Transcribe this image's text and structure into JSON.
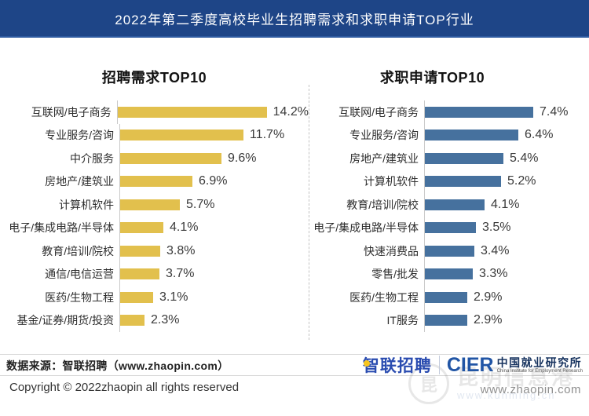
{
  "banner": {
    "title": "2022年第二季度高校毕业生招聘需求和求职申请TOP行业"
  },
  "chart_data": [
    {
      "type": "bar",
      "orientation": "horizontal",
      "title": "招聘需求TOP10",
      "categories": [
        "互联网/电子商务",
        "专业服务/咨询",
        "中介服务",
        "房地产/建筑业",
        "计算机软件",
        "电子/集成电路/半导体",
        "教育/培训/院校",
        "通信/电信运营",
        "医药/生物工程",
        "基金/证券/期货/投资"
      ],
      "values": [
        14.2,
        11.7,
        9.6,
        6.9,
        5.7,
        4.1,
        3.8,
        3.7,
        3.1,
        2.3
      ],
      "value_labels": [
        "14.2%",
        "11.7%",
        "9.6%",
        "6.9%",
        "5.7%",
        "4.1%",
        "3.8%",
        "3.7%",
        "3.1%",
        "2.3%"
      ],
      "bar_color": "#E2C04D",
      "xlabel": "",
      "ylabel": "",
      "xlim": [
        0,
        18
      ],
      "grid": false,
      "legend": false
    },
    {
      "type": "bar",
      "orientation": "horizontal",
      "title": "求职申请TOP10",
      "categories": [
        "互联网/电子商务",
        "专业服务/咨询",
        "房地产/建筑业",
        "计算机软件",
        "教育/培训/院校",
        "电子/集成电路/半导体",
        "快速消费品",
        "零售/批发",
        "医药/生物工程",
        "IT服务"
      ],
      "values": [
        7.4,
        6.4,
        5.4,
        5.2,
        4.1,
        3.5,
        3.4,
        3.3,
        2.9,
        2.9
      ],
      "value_labels": [
        "7.4%",
        "6.4%",
        "5.4%",
        "5.2%",
        "4.1%",
        "3.5%",
        "3.4%",
        "3.3%",
        "2.9%",
        "2.9%"
      ],
      "bar_color": "#46719E",
      "xlabel": "",
      "ylabel": "",
      "xlim": [
        0,
        11
      ],
      "grid": false,
      "legend": false
    }
  ],
  "footer": {
    "source": "数据来源：智联招聘（www.zhaopin.com）",
    "copyright": "Copyright © 2022zhaopin all rights reserved"
  },
  "branding": {
    "zhaopin_logo": "智联招聘",
    "cier_acronym": "CIER",
    "cier_cn": "中国就业研究所",
    "cier_en": "China Institute for Employment Research",
    "website": "www.zhaopin.com"
  },
  "watermark": {
    "glyph": "昆",
    "text": "昆明信息港",
    "url": "www.kunming.cn"
  },
  "colors": {
    "banner_bg": "#1E4587",
    "bar_yellow": "#E2C04D",
    "bar_blue": "#46719E",
    "zhaopin_blue": "#2A4CB0",
    "axis_gray": "#C9C9C9"
  }
}
